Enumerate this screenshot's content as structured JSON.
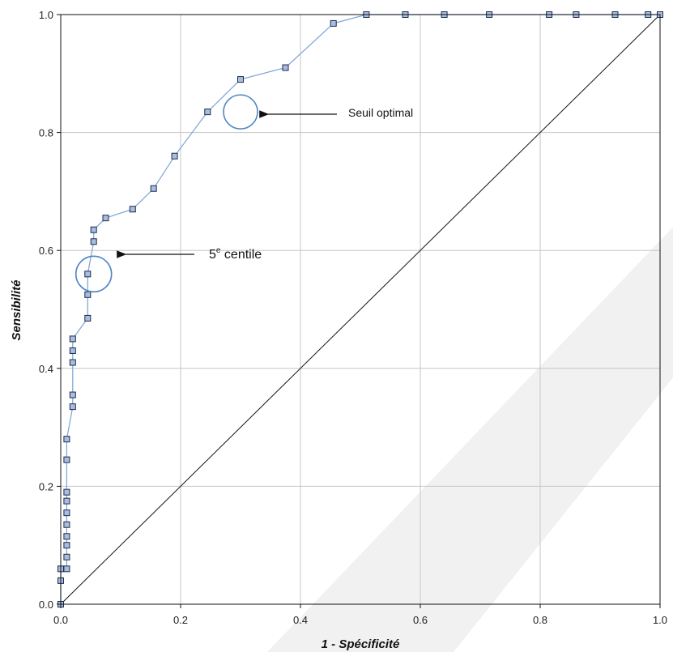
{
  "chart_data": {
    "type": "line",
    "xlabel": "1 - Spécificité",
    "ylabel": "Sensibilité",
    "xlim": [
      0,
      1
    ],
    "ylim": [
      0,
      1
    ],
    "x_ticks": [
      "0.0",
      "0.2",
      "0.4",
      "0.6",
      "0.8",
      "1.0"
    ],
    "y_ticks": [
      "0.0",
      "0.2",
      "0.4",
      "0.6",
      "0.8",
      "1.0"
    ],
    "grid": true,
    "reference_line": {
      "from": [
        0,
        0
      ],
      "to": [
        1,
        1
      ]
    },
    "series": [
      {
        "x": [
          0.0,
          0.0,
          0.0,
          0.01,
          0.01,
          0.01,
          0.01,
          0.01,
          0.01,
          0.01,
          0.01,
          0.01,
          0.01,
          0.02,
          0.02,
          0.02,
          0.02,
          0.02,
          0.045,
          0.045,
          0.045,
          0.055,
          0.055,
          0.075,
          0.12,
          0.155,
          0.19,
          0.245,
          0.3,
          0.375,
          0.455,
          0.51,
          0.575,
          0.64,
          0.715,
          0.815,
          0.86,
          0.925,
          0.98,
          1.0
        ],
        "y": [
          0.0,
          0.04,
          0.06,
          0.06,
          0.08,
          0.1,
          0.115,
          0.135,
          0.155,
          0.175,
          0.19,
          0.245,
          0.28,
          0.335,
          0.355,
          0.41,
          0.43,
          0.45,
          0.485,
          0.525,
          0.56,
          0.615,
          0.635,
          0.655,
          0.67,
          0.705,
          0.76,
          0.835,
          0.89,
          0.91,
          0.985,
          1.0,
          1.0,
          1.0,
          1.0,
          1.0,
          1.0,
          1.0,
          1.0,
          1.0
        ],
        "line_color": "#7aa3d6",
        "marker_fill": "#aabde0",
        "marker_edge": "#1c2b4a"
      }
    ],
    "annotations": [
      {
        "text": "Seuil optimal",
        "point": [
          0.3,
          0.835
        ]
      },
      {
        "text": "5",
        "superscript": "e",
        "suffix": " centile",
        "point": [
          0.055,
          0.56
        ]
      }
    ],
    "circle_color": "#4f86c6",
    "watermark_color": "#ececec"
  }
}
